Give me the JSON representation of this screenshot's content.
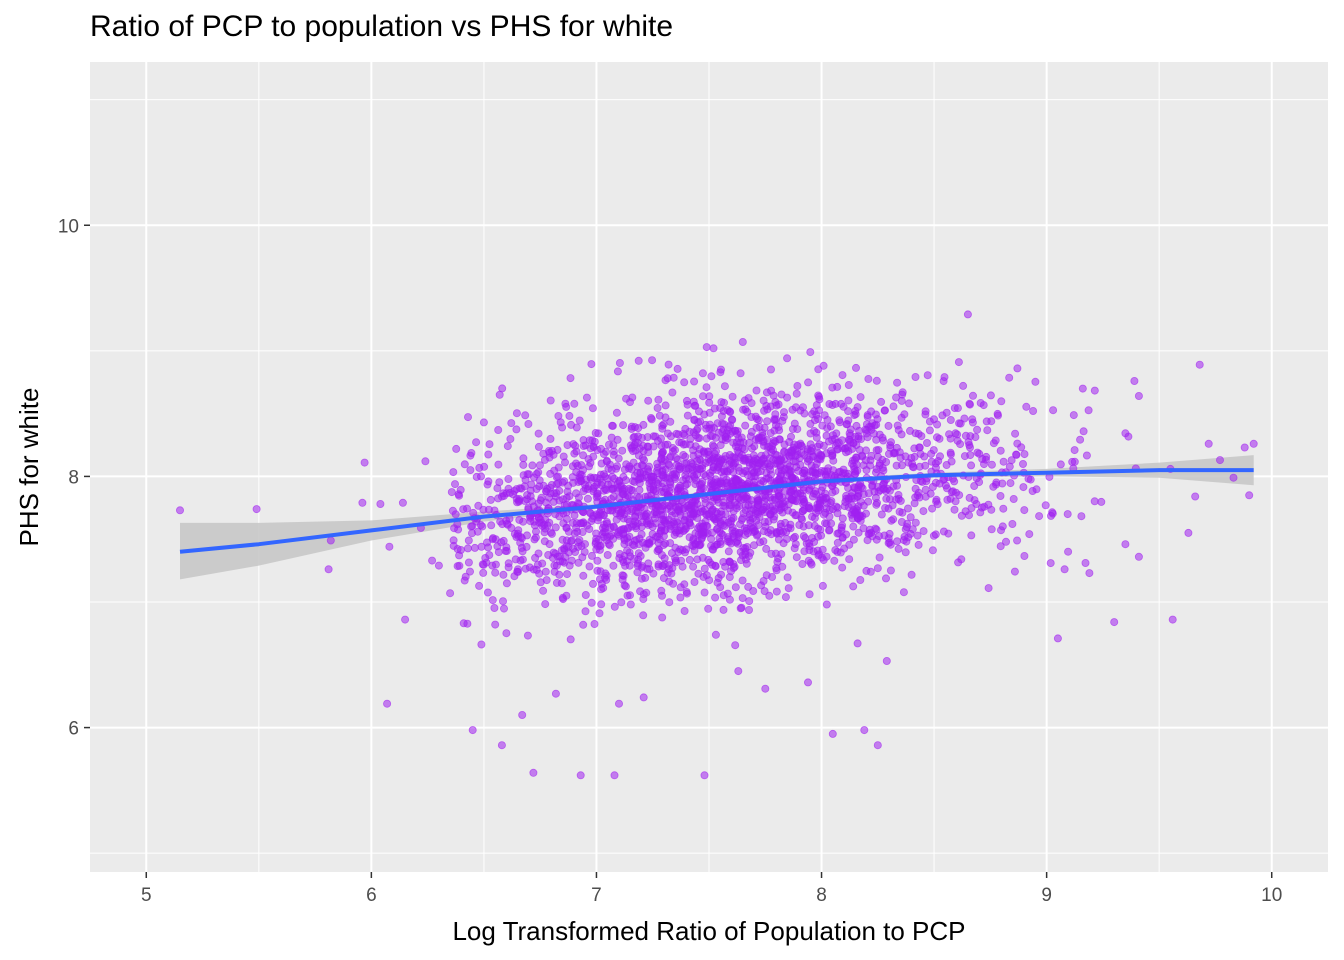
{
  "chart_data": {
    "type": "scatter",
    "title": "Ratio of PCP to population vs PHS for white",
    "xlabel": "Log Transformed Ratio of Population to PCP",
    "ylabel": "PHS for white",
    "xlim": [
      4.75,
      10.25
    ],
    "ylim": [
      4.85,
      11.3
    ],
    "x_ticks": [
      "5",
      "6",
      "7",
      "8",
      "9",
      "10"
    ],
    "y_ticks": [
      "6",
      "8",
      "10"
    ],
    "grid": true,
    "panel_background": "#ebebeb",
    "point_color": "#a020f0",
    "smooth_color": "#3366ff",
    "ribbon_color": "#c6c6c6",
    "point_summary": {
      "n_points": 2600,
      "x_center": 7.55,
      "x_sd": 0.62,
      "y_center": 7.9,
      "y_sd": 0.38
    },
    "points": [
      {
        "x": 5.15,
        "y": 7.73
      },
      {
        "x": 5.49,
        "y": 7.74
      },
      {
        "x": 5.81,
        "y": 7.26
      },
      {
        "x": 5.82,
        "y": 7.49
      },
      {
        "x": 5.97,
        "y": 8.11
      },
      {
        "x": 5.96,
        "y": 7.79
      },
      {
        "x": 6.04,
        "y": 7.78
      },
      {
        "x": 6.07,
        "y": 6.19
      },
      {
        "x": 6.08,
        "y": 7.44
      },
      {
        "x": 6.14,
        "y": 7.79
      },
      {
        "x": 6.15,
        "y": 6.86
      },
      {
        "x": 6.24,
        "y": 8.12
      },
      {
        "x": 6.22,
        "y": 7.59
      },
      {
        "x": 6.27,
        "y": 7.33
      },
      {
        "x": 6.3,
        "y": 7.29
      },
      {
        "x": 6.35,
        "y": 7.07
      },
      {
        "x": 6.41,
        "y": 6.83
      },
      {
        "x": 6.45,
        "y": 5.98
      },
      {
        "x": 6.58,
        "y": 5.86
      },
      {
        "x": 6.55,
        "y": 6.82
      },
      {
        "x": 6.67,
        "y": 6.1
      },
      {
        "x": 6.72,
        "y": 5.64
      },
      {
        "x": 6.82,
        "y": 6.27
      },
      {
        "x": 6.93,
        "y": 5.62
      },
      {
        "x": 7.08,
        "y": 5.62
      },
      {
        "x": 7.1,
        "y": 6.19
      },
      {
        "x": 7.21,
        "y": 6.24
      },
      {
        "x": 7.48,
        "y": 5.62
      },
      {
        "x": 7.63,
        "y": 6.45
      },
      {
        "x": 7.75,
        "y": 6.31
      },
      {
        "x": 7.94,
        "y": 6.36
      },
      {
        "x": 8.05,
        "y": 5.95
      },
      {
        "x": 8.19,
        "y": 5.98
      },
      {
        "x": 8.25,
        "y": 5.86
      },
      {
        "x": 8.16,
        "y": 6.67
      },
      {
        "x": 8.29,
        "y": 6.53
      },
      {
        "x": 8.65,
        "y": 9.29
      },
      {
        "x": 7.65,
        "y": 9.07
      },
      {
        "x": 7.49,
        "y": 9.03
      },
      {
        "x": 7.52,
        "y": 9.02
      },
      {
        "x": 7.95,
        "y": 8.99
      },
      {
        "x": 8.61,
        "y": 8.91
      },
      {
        "x": 9.68,
        "y": 8.89
      },
      {
        "x": 8.87,
        "y": 8.86
      },
      {
        "x": 9.39,
        "y": 8.76
      },
      {
        "x": 9.41,
        "y": 8.64
      },
      {
        "x": 9.05,
        "y": 6.71
      },
      {
        "x": 9.19,
        "y": 7.23
      },
      {
        "x": 9.3,
        "y": 6.84
      },
      {
        "x": 9.56,
        "y": 6.86
      },
      {
        "x": 9.63,
        "y": 7.55
      },
      {
        "x": 9.55,
        "y": 8.06
      },
      {
        "x": 9.77,
        "y": 8.13
      },
      {
        "x": 9.83,
        "y": 7.99
      },
      {
        "x": 9.88,
        "y": 8.23
      },
      {
        "x": 9.92,
        "y": 8.26
      },
      {
        "x": 9.9,
        "y": 7.85
      },
      {
        "x": 9.72,
        "y": 8.26
      },
      {
        "x": 9.66,
        "y": 7.84
      },
      {
        "x": 9.35,
        "y": 7.46
      },
      {
        "x": 9.41,
        "y": 7.36
      },
      {
        "x": 9.08,
        "y": 7.26
      },
      {
        "x": 6.5,
        "y": 8.43
      },
      {
        "x": 6.57,
        "y": 8.65
      },
      {
        "x": 6.44,
        "y": 8.05
      },
      {
        "x": 6.52,
        "y": 7.96
      }
    ],
    "smooth": {
      "x": [
        5.15,
        5.5,
        6.0,
        6.5,
        7.0,
        7.5,
        8.0,
        8.5,
        9.0,
        9.5,
        9.92
      ],
      "y": [
        7.4,
        7.46,
        7.57,
        7.68,
        7.76,
        7.86,
        7.96,
        8.01,
        8.03,
        8.05,
        8.05
      ],
      "lower": [
        7.18,
        7.29,
        7.49,
        7.64,
        7.74,
        7.84,
        7.94,
        7.99,
        8.0,
        7.99,
        7.93
      ],
      "upper": [
        7.63,
        7.63,
        7.65,
        7.72,
        7.78,
        7.88,
        7.98,
        8.03,
        8.06,
        8.11,
        8.17
      ]
    }
  }
}
